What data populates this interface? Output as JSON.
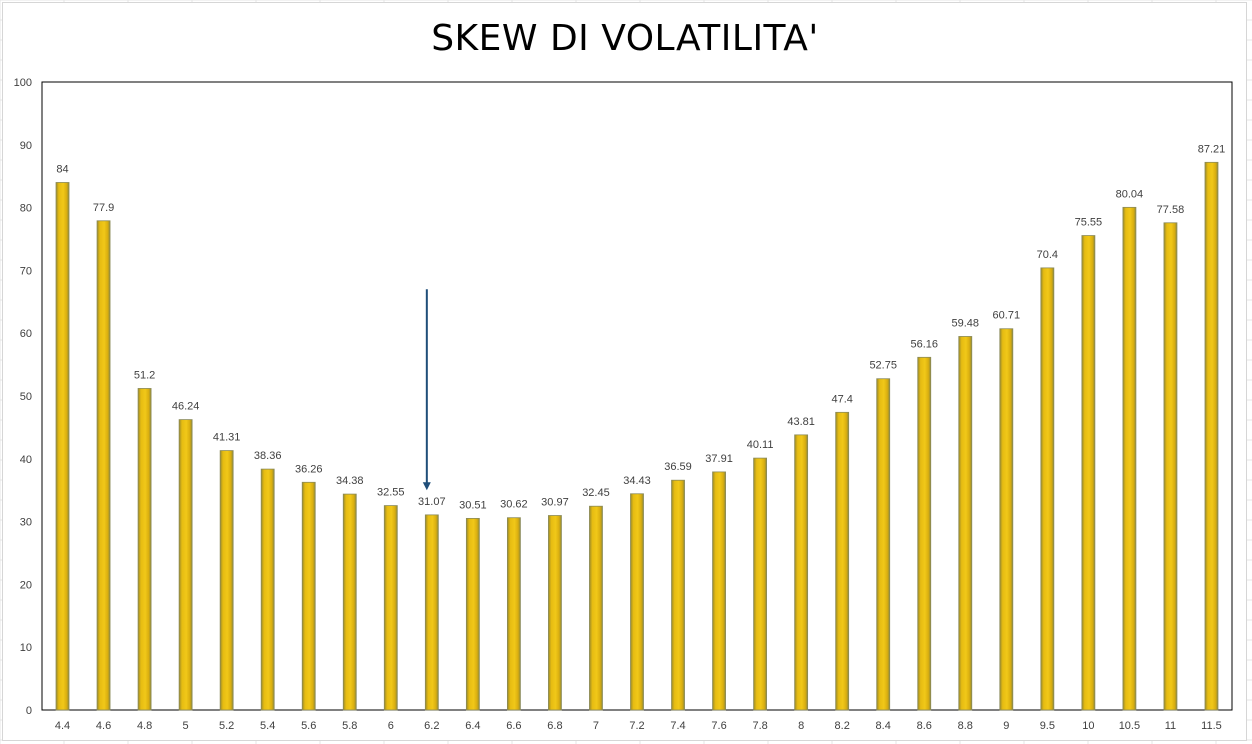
{
  "chart_data": {
    "type": "bar",
    "title": "SKEW DI VOLATILITA'",
    "xlabel": "",
    "ylabel": "",
    "ylim": [
      0,
      100
    ],
    "yticks": [
      0,
      10,
      20,
      30,
      40,
      50,
      60,
      70,
      80,
      90,
      100
    ],
    "grid": false,
    "legend": "none",
    "categories": [
      "4.4",
      "4.6",
      "4.8",
      "5",
      "5.2",
      "5.4",
      "5.6",
      "5.8",
      "6",
      "6.2",
      "6.4",
      "6.6",
      "6.8",
      "7",
      "7.2",
      "7.4",
      "7.6",
      "7.8",
      "8",
      "8.2",
      "8.4",
      "8.6",
      "8.8",
      "9",
      "9.5",
      "10",
      "10.5",
      "11",
      "11.5"
    ],
    "values": [
      84,
      77.9,
      51.2,
      46.24,
      41.31,
      38.36,
      36.26,
      34.38,
      32.55,
      31.07,
      30.51,
      30.62,
      30.97,
      32.45,
      34.43,
      36.59,
      37.91,
      40.11,
      43.81,
      47.4,
      52.75,
      56.16,
      59.48,
      60.71,
      70.4,
      75.55,
      80.04,
      77.58,
      87.21
    ],
    "data_labels": [
      "84",
      "77.9",
      "51.2",
      "46.24",
      "41.31",
      "38.36",
      "36.26",
      "34.38",
      "32.55",
      "31.07",
      "30.51",
      "30.62",
      "30.97",
      "32.45",
      "34.43",
      "36.59",
      "37.91",
      "40.11",
      "43.81",
      "47.4",
      "52.75",
      "56.16",
      "59.48",
      "60.71",
      "70.4",
      "75.55",
      "80.04",
      "77.58",
      "87.21"
    ],
    "annotation": {
      "type": "arrow-down",
      "category": "6.2",
      "from_value": 67,
      "to_value": 35
    },
    "colors": {
      "bar": "#e2b613",
      "bar_edge": "#8a8a5a",
      "axis": "#000000",
      "arrow": "#1f4e79",
      "text": "#404040"
    }
  }
}
